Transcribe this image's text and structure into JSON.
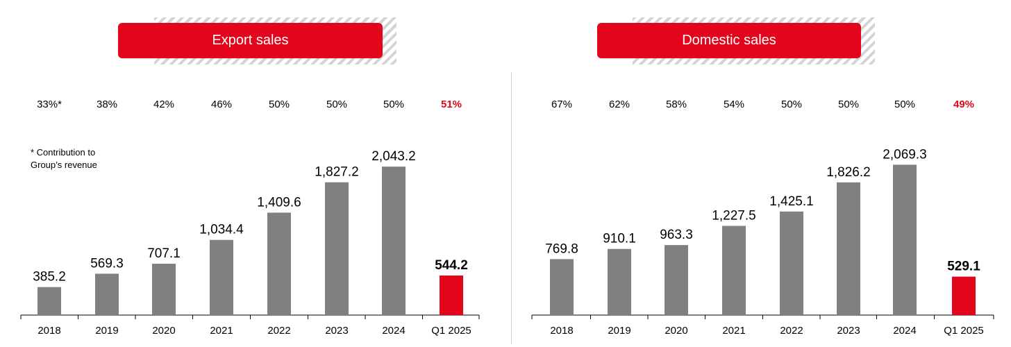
{
  "colors": {
    "bar": "#808080",
    "highlight": "#e3051b",
    "pill": "#e3051b",
    "axis": "#000000"
  },
  "note": "* Contribution to\nGroup’s revenue",
  "chart_data": [
    {
      "type": "bar",
      "title": "Export sales",
      "categories": [
        "2018",
        "2019",
        "2020",
        "2021",
        "2022",
        "2023",
        "2024",
        "Q1 2025"
      ],
      "values": [
        385.2,
        569.3,
        707.1,
        1034.4,
        1409.6,
        1827.2,
        2043.2,
        544.2
      ],
      "value_labels": [
        "385.2",
        "569.3",
        "707.1",
        "1,034.4",
        "1,409.6",
        "1,827.2",
        "2,043.2",
        "544.2"
      ],
      "shares": [
        "33%*",
        "38%",
        "42%",
        "46%",
        "50%",
        "50%",
        "50%",
        "51%"
      ],
      "highlight_index": 7,
      "ylim": [
        0,
        2550
      ],
      "grid": false,
      "legend": "none"
    },
    {
      "type": "bar",
      "title": "Domestic sales",
      "categories": [
        "2018",
        "2019",
        "2020",
        "2021",
        "2022",
        "2023",
        "2024",
        "Q1 2025"
      ],
      "values": [
        769.8,
        910.1,
        963.3,
        1227.5,
        1425.1,
        1826.2,
        2069.3,
        529.1
      ],
      "value_labels": [
        "769.8",
        "910.1",
        "963.3",
        "1,227.5",
        "1,425.1",
        "1,826.2",
        "2,069.3",
        "529.1"
      ],
      "shares": [
        "67%",
        "62%",
        "58%",
        "54%",
        "50%",
        "50%",
        "50%",
        "49%"
      ],
      "highlight_index": 7,
      "ylim": [
        0,
        2550
      ],
      "grid": false,
      "legend": "none"
    }
  ]
}
